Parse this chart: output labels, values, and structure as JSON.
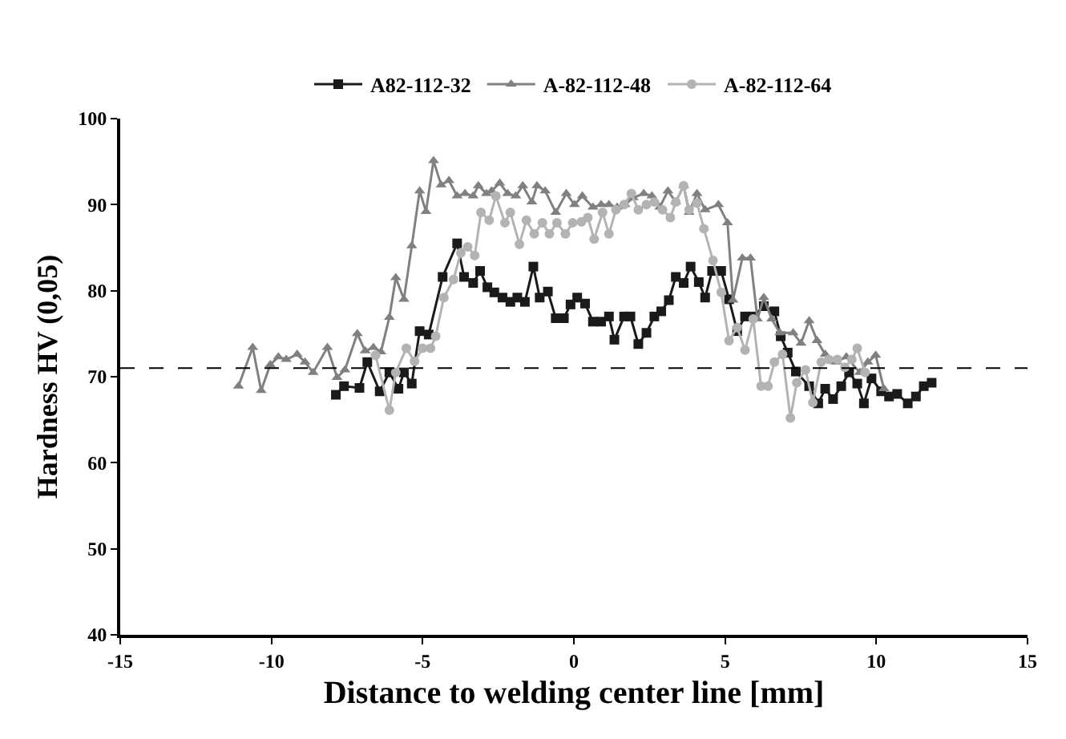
{
  "chart_data": {
    "type": "line",
    "xlabel": "Distance to welding center line [mm]",
    "ylabel": "Hardness HV (0,05)",
    "xlim": [
      -15,
      15
    ],
    "xticks": [
      -15,
      -10,
      -5,
      0,
      5,
      10,
      15
    ],
    "ylim": [
      40,
      100
    ],
    "yticks": [
      40,
      50,
      60,
      70,
      80,
      90,
      100
    ],
    "legend": "top",
    "line_style": "solid",
    "ref_lines": [
      {
        "axis": "y",
        "value": 71,
        "color": "#000000",
        "line_style": "dashed"
      }
    ],
    "series": [
      {
        "name": "A82-112-32",
        "color": "#1a1a1a",
        "marker": "square",
        "x": [
          -7.87,
          -7.6,
          -7.09,
          -6.83,
          -6.42,
          -6.1,
          -5.8,
          -5.62,
          -5.36,
          -5.1,
          -4.8,
          -4.34,
          -3.86,
          -3.63,
          -3.33,
          -3.1,
          -2.86,
          -2.63,
          -2.36,
          -2.1,
          -1.87,
          -1.62,
          -1.34,
          -1.13,
          -0.86,
          -0.6,
          -0.33,
          -0.11,
          0.11,
          0.37,
          0.63,
          0.9,
          1.16,
          1.34,
          1.66,
          1.87,
          2.13,
          2.4,
          2.66,
          2.89,
          3.14,
          3.37,
          3.63,
          3.86,
          4.13,
          4.34,
          4.57,
          4.87,
          5.13,
          5.4,
          5.66,
          5.93,
          6.28,
          6.63,
          6.84,
          7.07,
          7.34,
          7.78,
          8.08,
          8.31,
          8.57,
          8.84,
          9.1,
          9.37,
          9.59,
          9.84,
          10.16,
          10.42,
          10.69,
          11.04,
          11.31,
          11.57,
          11.83
        ],
        "values": [
          67.9,
          68.9,
          68.7,
          71.7,
          68.3,
          70.5,
          68.6,
          70.5,
          69.2,
          75.3,
          74.9,
          81.6,
          85.5,
          81.6,
          80.9,
          82.3,
          80.4,
          79.8,
          79.2,
          78.7,
          79.2,
          78.7,
          82.8,
          79.2,
          79.9,
          76.8,
          76.8,
          78.4,
          79.2,
          78.5,
          76.4,
          76.4,
          77.0,
          74.3,
          77.0,
          77.0,
          73.8,
          75.1,
          77.0,
          77.6,
          78.9,
          81.6,
          80.9,
          82.8,
          81.0,
          79.2,
          82.3,
          82.3,
          79.0,
          75.3,
          77.0,
          77.0,
          78.2,
          77.6,
          74.7,
          72.8,
          70.6,
          68.9,
          66.9,
          68.6,
          67.4,
          68.9,
          70.5,
          69.2,
          66.9,
          69.8,
          68.3,
          67.7,
          68.0,
          66.9,
          67.7,
          68.9,
          69.3
        ]
      },
      {
        "name": "A-82-112-48",
        "color": "#808080",
        "marker": "triangle",
        "x": [
          -11.09,
          -10.62,
          -10.34,
          -10.04,
          -9.77,
          -9.51,
          -9.15,
          -8.89,
          -8.62,
          -8.15,
          -7.83,
          -7.57,
          -7.16,
          -6.9,
          -6.63,
          -6.38,
          -6.1,
          -5.89,
          -5.62,
          -5.36,
          -5.1,
          -4.89,
          -4.64,
          -4.39,
          -4.13,
          -3.86,
          -3.6,
          -3.33,
          -3.16,
          -2.89,
          -2.72,
          -2.45,
          -2.19,
          -1.92,
          -1.69,
          -1.39,
          -1.22,
          -0.95,
          -0.6,
          -0.25,
          0.02,
          0.28,
          0.63,
          0.9,
          1.16,
          1.43,
          1.69,
          1.96,
          2.31,
          2.58,
          2.84,
          3.11,
          3.37,
          3.63,
          3.81,
          4.07,
          4.34,
          4.78,
          5.08,
          5.26,
          5.57,
          5.84,
          6.07,
          6.28,
          6.54,
          6.81,
          7.25,
          7.51,
          7.78,
          8.04,
          8.31,
          8.66,
          9.01,
          9.45,
          9.72,
          9.98,
          10.25
        ],
        "values": [
          68.9,
          73.4,
          68.4,
          71.4,
          72.3,
          72.0,
          72.6,
          71.7,
          70.5,
          73.4,
          69.9,
          70.8,
          75.0,
          73.0,
          73.4,
          72.9,
          76.9,
          81.5,
          79.0,
          85.2,
          91.6,
          89.2,
          95.1,
          92.3,
          92.8,
          91.0,
          91.3,
          91.0,
          92.2,
          91.3,
          91.6,
          92.5,
          91.3,
          91.0,
          92.2,
          90.3,
          92.2,
          91.6,
          89.1,
          91.3,
          90.0,
          91.0,
          89.7,
          90.0,
          90.0,
          89.7,
          90.0,
          90.8,
          91.3,
          91.0,
          89.7,
          91.6,
          90.3,
          92.2,
          89.1,
          91.3,
          89.4,
          90.0,
          87.9,
          78.9,
          83.8,
          83.8,
          76.7,
          79.2,
          76.7,
          75.1,
          75.1,
          73.9,
          76.5,
          74.2,
          72.6,
          71.7,
          72.3,
          70.5,
          71.7,
          72.5,
          68.6
        ]
      },
      {
        "name": "A-82-112-64",
        "color": "#b3b3b3",
        "marker": "circle",
        "x": [
          -6.56,
          -6.1,
          -5.89,
          -5.54,
          -5.27,
          -5.0,
          -4.74,
          -4.57,
          -4.3,
          -3.98,
          -3.74,
          -3.51,
          -3.28,
          -3.07,
          -2.8,
          -2.58,
          -2.28,
          -2.1,
          -1.8,
          -1.57,
          -1.31,
          -1.04,
          -0.81,
          -0.56,
          -0.28,
          -0.04,
          0.25,
          0.46,
          0.67,
          0.95,
          1.16,
          1.39,
          1.66,
          1.9,
          2.13,
          2.4,
          2.66,
          2.93,
          3.19,
          3.37,
          3.63,
          3.81,
          4.07,
          4.3,
          4.6,
          4.87,
          5.13,
          5.4,
          5.66,
          5.93,
          6.19,
          6.42,
          6.63,
          6.9,
          7.16,
          7.37,
          7.66,
          7.9,
          8.18,
          8.43,
          8.71,
          8.96,
          9.19,
          9.37,
          9.63
        ],
        "values": [
          72.5,
          66.1,
          70.5,
          73.3,
          71.8,
          73.3,
          73.3,
          74.7,
          79.2,
          81.3,
          84.4,
          85.1,
          84.1,
          89.1,
          88.2,
          91.0,
          87.9,
          89.1,
          85.4,
          88.2,
          86.6,
          87.9,
          86.6,
          87.9,
          86.6,
          87.9,
          88.0,
          88.5,
          86.0,
          89.1,
          86.6,
          89.4,
          90.0,
          91.3,
          89.4,
          90.0,
          90.3,
          89.4,
          88.5,
          90.3,
          92.2,
          89.4,
          90.2,
          87.2,
          83.5,
          79.8,
          74.2,
          75.7,
          73.1,
          76.7,
          68.9,
          68.9,
          71.7,
          72.6,
          65.2,
          69.3,
          70.8,
          67.0,
          71.7,
          72.0,
          72.0,
          71.1,
          72.0,
          73.3,
          70.5
        ]
      }
    ]
  }
}
